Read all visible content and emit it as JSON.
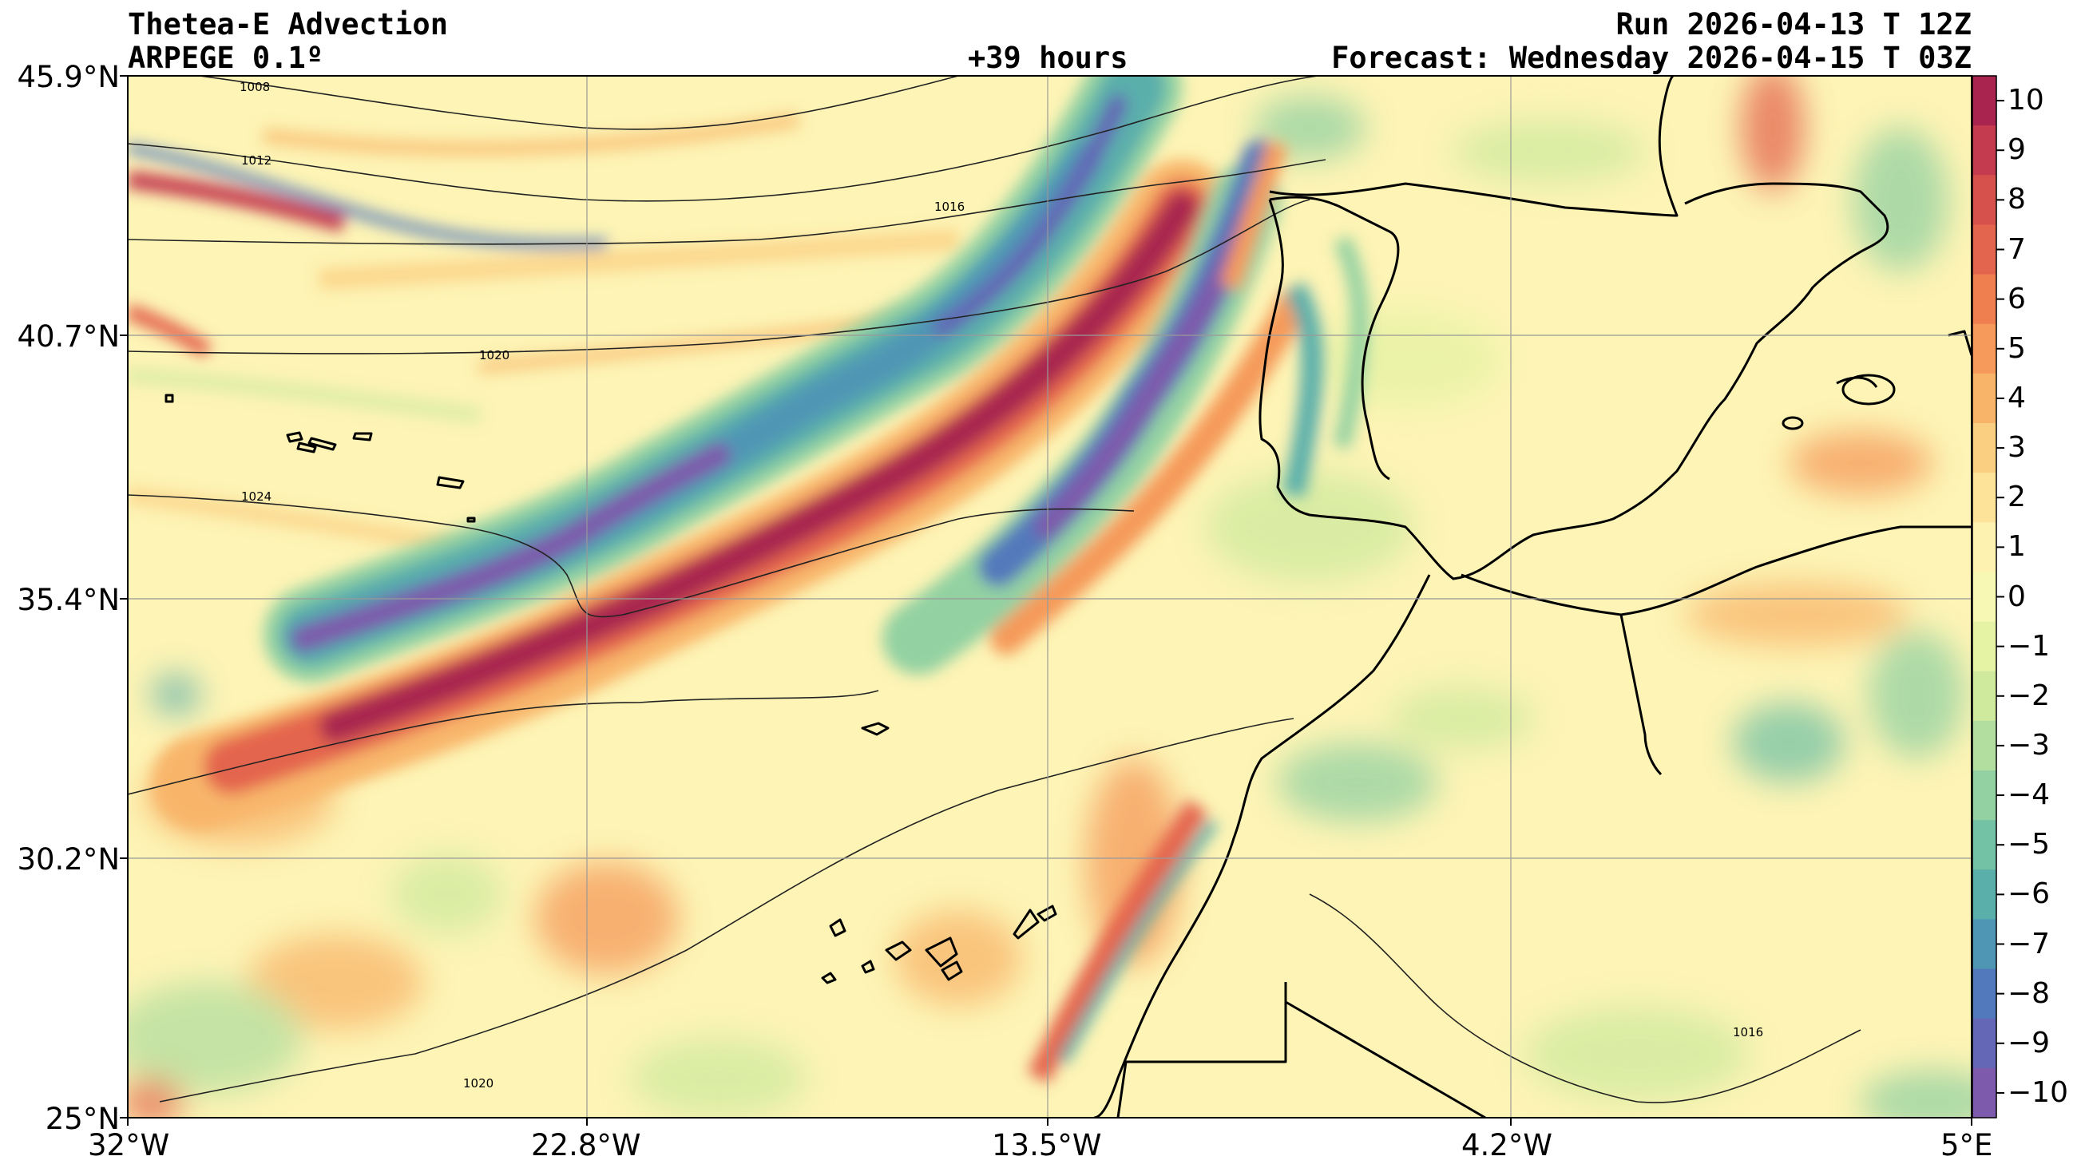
{
  "header": {
    "title_line1": "Thetea-E Advection",
    "title_line2": "ARPEGE 0.1º",
    "lead_time": "+39 hours",
    "run": "Run 2026-04-13 T 12Z",
    "forecast": "Forecast: Wednesday 2026-04-15 T 03Z"
  },
  "axes": {
    "lat_labels": [
      "45.9°N",
      "40.7°N",
      "35.4°N",
      "30.2°N",
      "25°N"
    ],
    "lon_labels": [
      "32°W",
      "22.8°W",
      "13.5°W",
      "4.2°W",
      "5°E"
    ]
  },
  "isobars": [
    "1008",
    "1012",
    "1016",
    "1020",
    "1024",
    "1020",
    "1016"
  ],
  "colorbar": {
    "ticks": [
      "10",
      "9",
      "8",
      "7",
      "6",
      "5",
      "4",
      "3",
      "2",
      "1",
      "0",
      "−1",
      "−2",
      "−3",
      "−4",
      "−5",
      "−6",
      "−7",
      "−8",
      "−9",
      "−10"
    ],
    "colors": [
      "#a9254f",
      "#c43b4f",
      "#d6504c",
      "#e4654d",
      "#f07f4f",
      "#f59a5a",
      "#f8b56a",
      "#fbcf82",
      "#fde39a",
      "#fef2b0",
      "#f6f8b3",
      "#e5f3a4",
      "#cfea9d",
      "#b2de9f",
      "#93d1a2",
      "#74c2a5",
      "#5aafab",
      "#4f96b5",
      "#5279bb",
      "#6466b6",
      "#7e5aac"
    ]
  }
}
